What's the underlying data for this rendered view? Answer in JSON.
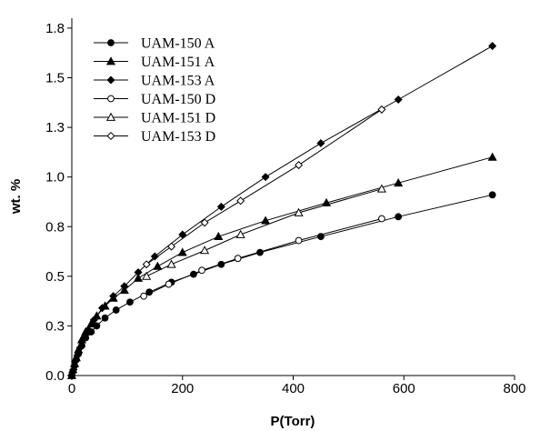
{
  "chart_data": {
    "type": "line",
    "title": "",
    "xlabel": "P(Torr)",
    "ylabel": "wt. %",
    "xlim": [
      0,
      800
    ],
    "ylim": [
      0,
      1.8
    ],
    "xticks": [
      0,
      200,
      400,
      600,
      800
    ],
    "xtick_labels": [
      "0",
      "200",
      "400",
      "600",
      "800"
    ],
    "yticks": [
      0.0,
      0.25,
      0.5,
      0.75,
      1.0,
      1.25,
      1.5,
      1.75
    ],
    "ytick_labels": [
      "0.0",
      "0.3",
      "0.5",
      "0.8",
      "1.0",
      "1.3",
      "1.5",
      "1.8"
    ],
    "grid": false,
    "legend_position": "top-left",
    "series": [
      {
        "name": "UAM-150 A",
        "marker": "circle-filled",
        "x": [
          0,
          2,
          5,
          8,
          12,
          18,
          25,
          35,
          45,
          60,
          80,
          105,
          140,
          180,
          220,
          270,
          340,
          450,
          590,
          760
        ],
        "y": [
          0,
          0.02,
          0.05,
          0.08,
          0.11,
          0.15,
          0.19,
          0.22,
          0.25,
          0.29,
          0.33,
          0.37,
          0.42,
          0.47,
          0.51,
          0.56,
          0.62,
          0.7,
          0.8,
          0.91
        ]
      },
      {
        "name": "UAM-151 A",
        "marker": "triangle-filled",
        "x": [
          0,
          2,
          5,
          8,
          12,
          18,
          25,
          35,
          45,
          60,
          75,
          95,
          120,
          155,
          200,
          265,
          350,
          460,
          590,
          760
        ],
        "y": [
          0,
          0.03,
          0.06,
          0.09,
          0.13,
          0.18,
          0.22,
          0.26,
          0.3,
          0.35,
          0.39,
          0.43,
          0.49,
          0.55,
          0.62,
          0.7,
          0.78,
          0.87,
          0.97,
          1.1
        ]
      },
      {
        "name": "UAM-153 A",
        "marker": "diamond-filled",
        "x": [
          0,
          3,
          6,
          10,
          15,
          22,
          30,
          40,
          55,
          75,
          95,
          120,
          150,
          200,
          270,
          350,
          450,
          590,
          760
        ],
        "y": [
          0,
          0.03,
          0.07,
          0.1,
          0.14,
          0.19,
          0.23,
          0.28,
          0.34,
          0.4,
          0.45,
          0.52,
          0.6,
          0.71,
          0.85,
          1.0,
          1.17,
          1.39,
          1.66
        ]
      },
      {
        "name": "UAM-150 D",
        "marker": "circle-open",
        "x": [
          130,
          175,
          235,
          300,
          410,
          560
        ],
        "y": [
          0.4,
          0.46,
          0.53,
          0.59,
          0.68,
          0.79
        ]
      },
      {
        "name": "UAM-151 D",
        "marker": "triangle-open",
        "x": [
          135,
          180,
          240,
          305,
          410,
          560
        ],
        "y": [
          0.5,
          0.56,
          0.63,
          0.71,
          0.82,
          0.94
        ]
      },
      {
        "name": "UAM-153 D",
        "marker": "diamond-open",
        "x": [
          135,
          180,
          240,
          305,
          410,
          560
        ],
        "y": [
          0.56,
          0.65,
          0.77,
          0.88,
          1.06,
          1.34
        ]
      }
    ]
  }
}
